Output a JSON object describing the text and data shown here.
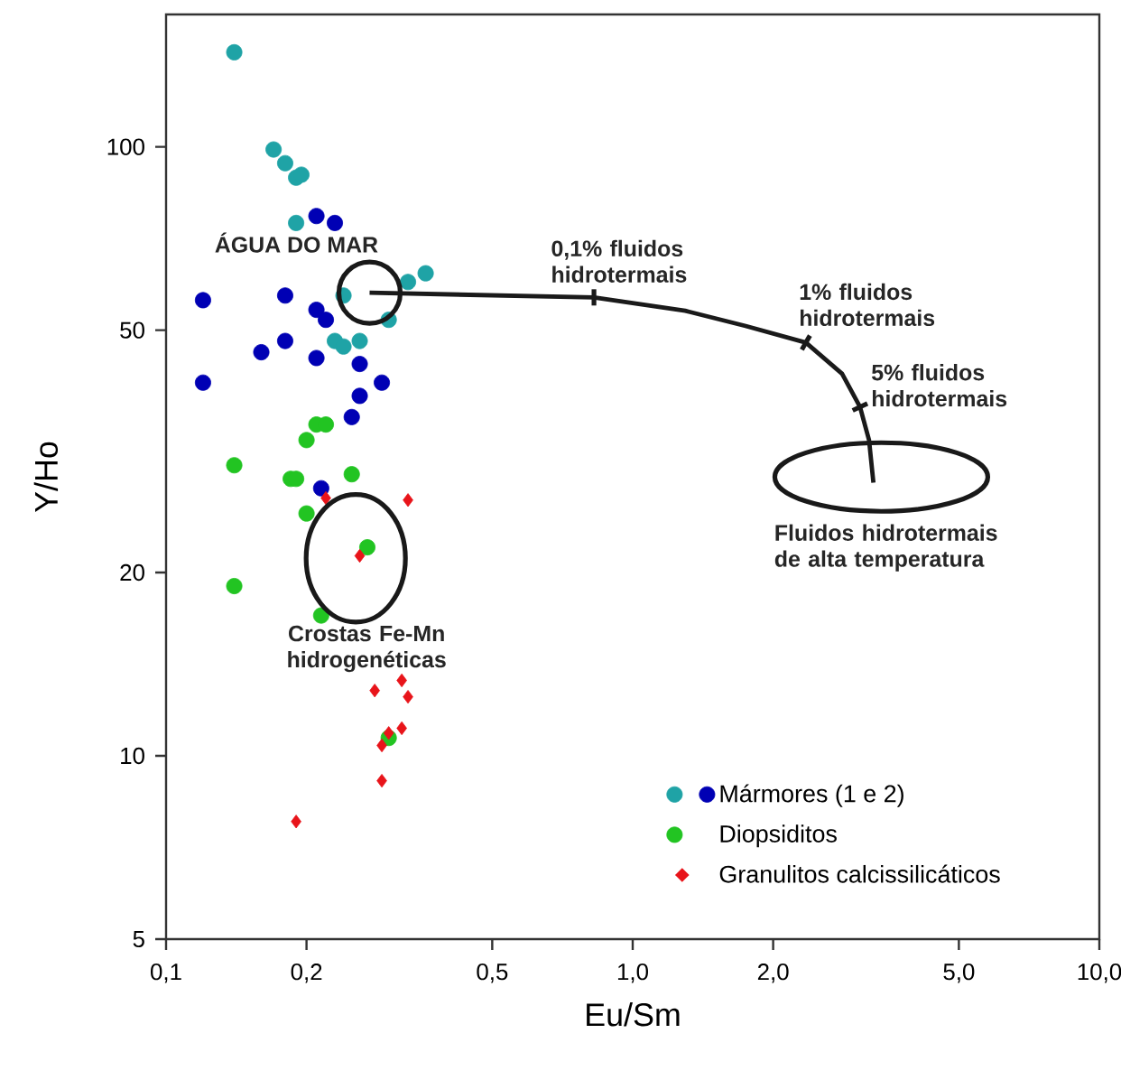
{
  "chart_data": {
    "type": "scatter",
    "xlabel": "Eu/Sm",
    "ylabel": "Y/Ho",
    "log": "xy",
    "xlim": [
      0.1,
      10
    ],
    "ylim": [
      5,
      165
    ],
    "xticks": [
      {
        "value": 0.1,
        "label": "0,1"
      },
      {
        "value": 0.2,
        "label": "0,2"
      },
      {
        "value": 0.5,
        "label": "0,5"
      },
      {
        "value": 1,
        "label": "1,0"
      },
      {
        "value": 2,
        "label": "2,0"
      },
      {
        "value": 5,
        "label": "5,0"
      },
      {
        "value": 10,
        "label": "10,0"
      }
    ],
    "yticks": [
      5,
      10,
      20,
      50,
      100
    ],
    "legend": "bottom right",
    "series": [
      {
        "name": "Mármores (1 e 2)",
        "marker": "circle",
        "x": [
          0.14,
          0.17,
          0.18,
          0.19,
          0.195,
          0.19,
          0.33,
          0.36,
          0.24,
          0.3,
          0.26,
          0.23,
          0.24,
          0.21,
          0.23,
          0.12,
          0.18,
          0.21,
          0.22,
          0.18,
          0.16,
          0.21,
          0.12,
          0.26,
          0.29,
          0.26,
          0.25,
          0.215
        ],
        "values": [
          143,
          99,
          94,
          89,
          90,
          75,
          60,
          62,
          57,
          52,
          48,
          48,
          47,
          77,
          75,
          56,
          57,
          54,
          52,
          48,
          46,
          45,
          41,
          44,
          41,
          39,
          36,
          27.5
        ],
        "colors": [
          "#1fa3a6",
          "#1fa3a6",
          "#1fa3a6",
          "#1fa3a6",
          "#1fa3a6",
          "#1fa3a6",
          "#1fa3a6",
          "#1fa3a6",
          "#1fa3a6",
          "#1fa3a6",
          "#1fa3a6",
          "#1fa3a6",
          "#1fa3a6",
          "#0000b4",
          "#0000b4",
          "#0000b4",
          "#0000b4",
          "#0000b4",
          "#0000b4",
          "#0000b4",
          "#0000b4",
          "#0000b4",
          "#0000b4",
          "#0000b4",
          "#0000b4",
          "#0000b4",
          "#0000b4",
          "#0000b4"
        ]
      },
      {
        "name": "Diopsiditos",
        "color": "#22c422",
        "marker": "circle",
        "x": [
          0.21,
          0.22,
          0.2,
          0.14,
          0.185,
          0.19,
          0.25,
          0.2,
          0.27,
          0.14,
          0.215,
          0.3
        ],
        "values": [
          35,
          35,
          33,
          30,
          28.5,
          28.5,
          29,
          25,
          22,
          19,
          17,
          10.7
        ]
      },
      {
        "name": "Granulitos calcissilicáticos",
        "color": "#e8141a",
        "marker": "diamond",
        "x": [
          0.22,
          0.33,
          0.26,
          0.32,
          0.28,
          0.33,
          0.32,
          0.3,
          0.29,
          0.29,
          0.19
        ],
        "values": [
          26.5,
          26.3,
          21.3,
          13.3,
          12.8,
          12.5,
          11.1,
          10.9,
          10.4,
          9.1,
          7.8
        ]
      },
      {
        "type": "line",
        "color": "#1a1a1a",
        "marker": "none",
        "line_style": "solid",
        "x": [
          0.273,
          0.826,
          1.296,
          1.746,
          2.35,
          2.81,
          3.07,
          3.21,
          3.28
        ],
        "values": [
          57.6,
          56.6,
          53.8,
          50.8,
          47.7,
          42.4,
          37.4,
          33.0,
          28.1
        ]
      }
    ],
    "annotations": [
      {
        "text": "ÁGUA DO MAR",
        "x": 0.273,
        "y": 57.6
      },
      {
        "text": "0,1% fluidos hidrotermais",
        "x": 0.826,
        "y": 56.6
      },
      {
        "text": "1% fluidos hidrotermais",
        "x": 2.35,
        "y": 47.7
      },
      {
        "text": "5% fluidos hidrotermais",
        "x": 3.07,
        "y": 37.4
      },
      {
        "text": "Crostas Fe-Mn hidrogenéticas",
        "x": 0.255,
        "y": 21.1
      },
      {
        "text": "Fluidos hidrotermais de alta temperatura",
        "x": 3.41,
        "y": 28.7
      }
    ]
  }
}
